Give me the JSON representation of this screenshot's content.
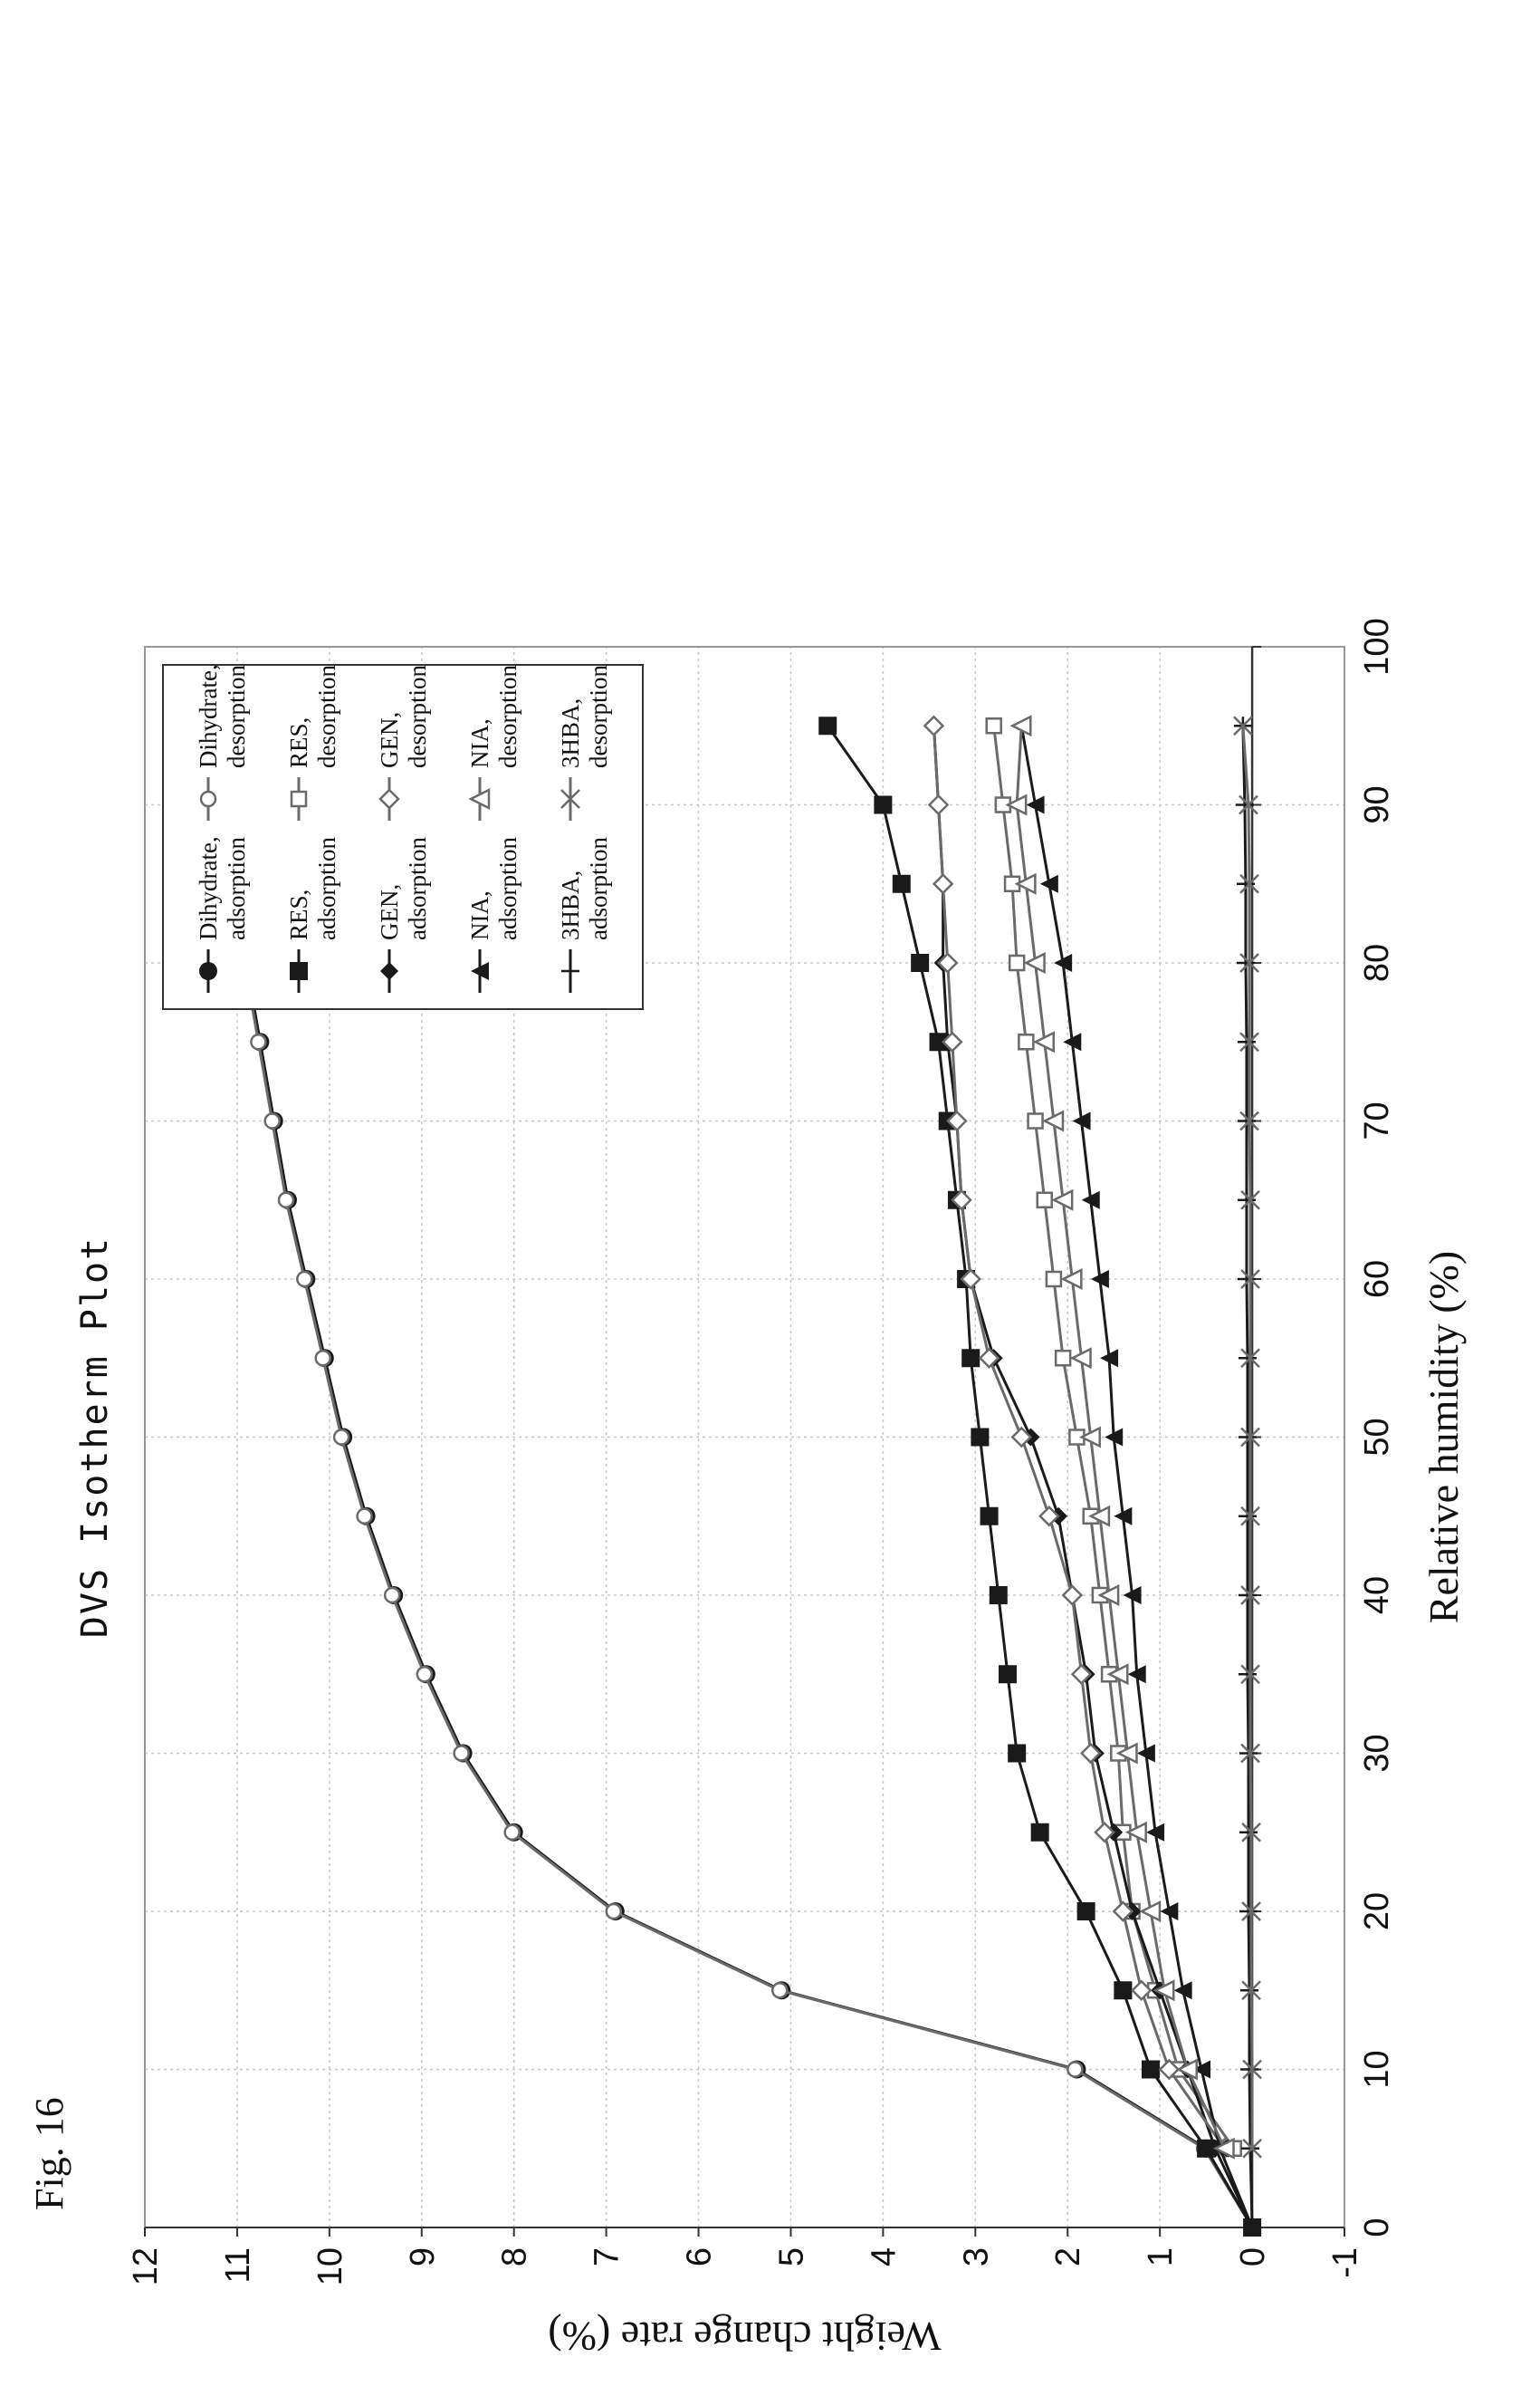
{
  "figure_label": "Fig. 16",
  "chart_data": {
    "type": "line",
    "title": "DVS Isotherm Plot",
    "xlabel": "Relative humidity (%)",
    "ylabel": "Weight change rate (%)",
    "xlim": [
      0,
      100
    ],
    "ylim": [
      -1,
      12
    ],
    "xticks": [
      0,
      10,
      20,
      30,
      40,
      50,
      60,
      70,
      80,
      90,
      100
    ],
    "yticks": [
      -1,
      0,
      1,
      2,
      3,
      4,
      5,
      6,
      7,
      8,
      9,
      10,
      11,
      12
    ],
    "grid": true,
    "legend_position": "top-right",
    "series": [
      {
        "name": "Dihydrate, adsorption",
        "marker": "circle",
        "color": "#1a1a1a",
        "x": [
          0,
          5,
          10,
          15,
          20,
          25,
          30,
          35,
          40,
          45,
          50,
          55,
          60,
          65,
          70,
          75,
          80,
          85,
          90,
          95
        ],
        "y": [
          0,
          0.5,
          1.9,
          5.1,
          6.9,
          8.0,
          8.55,
          8.95,
          9.3,
          9.6,
          9.85,
          10.05,
          10.25,
          10.45,
          10.6,
          10.75,
          10.9,
          11.0,
          11.1,
          11.3
        ]
      },
      {
        "name": "Dihydrate, desorption",
        "marker": "circle-open",
        "color": "#6a6a6a",
        "x": [
          0,
          5,
          10,
          15,
          20,
          25,
          30,
          35,
          40,
          45,
          50,
          55,
          60,
          65,
          70,
          75,
          80,
          85,
          90,
          95
        ],
        "y": [
          0,
          0.52,
          1.92,
          5.12,
          6.92,
          8.02,
          8.57,
          8.97,
          9.32,
          9.62,
          9.87,
          10.07,
          10.27,
          10.47,
          10.62,
          10.77,
          10.92,
          11.02,
          11.12,
          11.3
        ]
      },
      {
        "name": "RES, adsorption",
        "marker": "square",
        "color": "#1a1a1a",
        "x": [
          0,
          5,
          10,
          15,
          20,
          25,
          30,
          35,
          40,
          45,
          50,
          55,
          60,
          65,
          70,
          75,
          80,
          85,
          90,
          95
        ],
        "y": [
          0,
          0.5,
          1.1,
          1.4,
          1.8,
          2.3,
          2.55,
          2.65,
          2.75,
          2.85,
          2.95,
          3.05,
          3.1,
          3.2,
          3.3,
          3.4,
          3.6,
          3.8,
          4.0,
          4.6
        ]
      },
      {
        "name": "RES, desorption",
        "marker": "square-open",
        "color": "#6a6a6a",
        "x": [
          5,
          10,
          15,
          20,
          25,
          30,
          35,
          40,
          45,
          50,
          55,
          60,
          65,
          70,
          75,
          80,
          85,
          90,
          95
        ],
        "y": [
          0.2,
          0.8,
          1.05,
          1.3,
          1.4,
          1.45,
          1.55,
          1.65,
          1.75,
          1.9,
          2.05,
          2.15,
          2.25,
          2.35,
          2.45,
          2.55,
          2.6,
          2.7,
          2.8
        ]
      },
      {
        "name": "GEN, adsorption",
        "marker": "diamond",
        "color": "#1a1a1a",
        "x": [
          0,
          5,
          10,
          15,
          20,
          25,
          30,
          35,
          40,
          45,
          50,
          55,
          60,
          65,
          70,
          75,
          80,
          85,
          90,
          95
        ],
        "y": [
          0,
          0.4,
          0.7,
          1.0,
          1.3,
          1.5,
          1.7,
          1.8,
          1.95,
          2.1,
          2.4,
          2.8,
          3.05,
          3.15,
          3.2,
          3.3,
          3.35,
          3.35,
          3.4,
          3.45
        ]
      },
      {
        "name": "GEN, desorption",
        "marker": "diamond-open",
        "color": "#6a6a6a",
        "x": [
          5,
          10,
          15,
          20,
          25,
          30,
          35,
          40,
          45,
          50,
          55,
          60,
          65,
          70,
          75,
          80,
          85,
          90,
          95
        ],
        "y": [
          0.3,
          0.9,
          1.2,
          1.4,
          1.6,
          1.75,
          1.85,
          1.95,
          2.2,
          2.5,
          2.85,
          3.05,
          3.15,
          3.2,
          3.25,
          3.3,
          3.35,
          3.4,
          3.45
        ]
      },
      {
        "name": "NIA, adsorption",
        "marker": "triangle",
        "color": "#1a1a1a",
        "x": [
          0,
          5,
          10,
          15,
          20,
          25,
          30,
          35,
          40,
          45,
          50,
          55,
          60,
          65,
          70,
          75,
          80,
          85,
          90,
          95
        ],
        "y": [
          0,
          0.35,
          0.55,
          0.75,
          0.9,
          1.05,
          1.15,
          1.25,
          1.3,
          1.4,
          1.5,
          1.55,
          1.65,
          1.75,
          1.85,
          1.95,
          2.05,
          2.2,
          2.35,
          2.5
        ]
      },
      {
        "name": "NIA, desorption",
        "marker": "triangle-open",
        "color": "#6a6a6a",
        "x": [
          5,
          10,
          15,
          20,
          25,
          30,
          35,
          40,
          45,
          50,
          55,
          60,
          65,
          70,
          75,
          80,
          85,
          90,
          95
        ],
        "y": [
          0.3,
          0.7,
          0.95,
          1.1,
          1.25,
          1.35,
          1.45,
          1.55,
          1.65,
          1.75,
          1.85,
          1.95,
          2.05,
          2.15,
          2.25,
          2.35,
          2.45,
          2.55,
          2.5
        ]
      },
      {
        "name": "3HBA, adsorption",
        "marker": "plus",
        "color": "#1a1a1a",
        "x": [
          0,
          5,
          10,
          15,
          20,
          25,
          30,
          35,
          40,
          45,
          50,
          55,
          60,
          65,
          70,
          75,
          80,
          85,
          90,
          95
        ],
        "y": [
          0,
          0.02,
          0.03,
          0.03,
          0.04,
          0.04,
          0.04,
          0.05,
          0.05,
          0.05,
          0.05,
          0.05,
          0.06,
          0.06,
          0.06,
          0.06,
          0.07,
          0.07,
          0.08,
          0.1
        ]
      },
      {
        "name": "3HBA, desorption",
        "marker": "cross",
        "color": "#6a6a6a",
        "x": [
          5,
          10,
          15,
          20,
          25,
          30,
          35,
          40,
          45,
          50,
          55,
          60,
          65,
          70,
          75,
          80,
          85,
          90,
          95
        ],
        "y": [
          0.0,
          0.0,
          0.01,
          0.01,
          0.01,
          0.02,
          0.02,
          0.02,
          0.02,
          0.02,
          0.02,
          0.02,
          0.02,
          0.03,
          0.03,
          0.03,
          0.03,
          0.04,
          0.1
        ]
      }
    ]
  }
}
